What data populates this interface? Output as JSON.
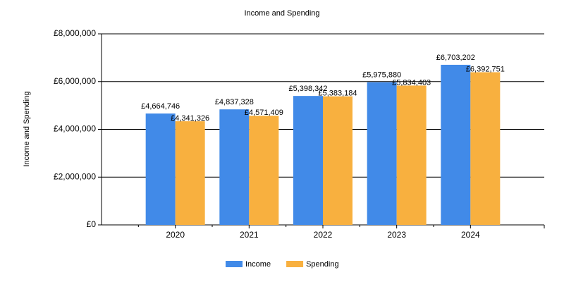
{
  "chart_data": {
    "type": "bar",
    "title": "Income and Spending",
    "y_label": "Income and Spending",
    "categories": [
      "2020",
      "2021",
      "2022",
      "2023",
      "2024"
    ],
    "series": [
      {
        "name": "Income",
        "color": "#418ae8",
        "values": [
          4664746,
          4837328,
          5398342,
          5975880,
          6703202
        ],
        "value_labels": [
          "£4,664,746",
          "£4,837,328",
          "£5,398,342",
          "£5,975,880",
          "£6,703,202"
        ]
      },
      {
        "name": "Spending",
        "color": "#f8b03f",
        "values": [
          4341326,
          4571409,
          5383184,
          5834403,
          6392751
        ],
        "value_labels": [
          "£4,341,326",
          "£4,571,409",
          "£5,383,184",
          "£5,834,403",
          "£6,392,751"
        ]
      }
    ],
    "ylim": [
      0,
      8000000
    ],
    "yticks": [
      {
        "value": 0,
        "label": "£0"
      },
      {
        "value": 2000000,
        "label": "£2,000,000"
      },
      {
        "value": 4000000,
        "label": "£4,000,000"
      },
      {
        "value": 6000000,
        "label": "£6,000,000"
      },
      {
        "value": 8000000,
        "label": "£8,000,000"
      }
    ],
    "grid": true,
    "legend": "bottom"
  }
}
